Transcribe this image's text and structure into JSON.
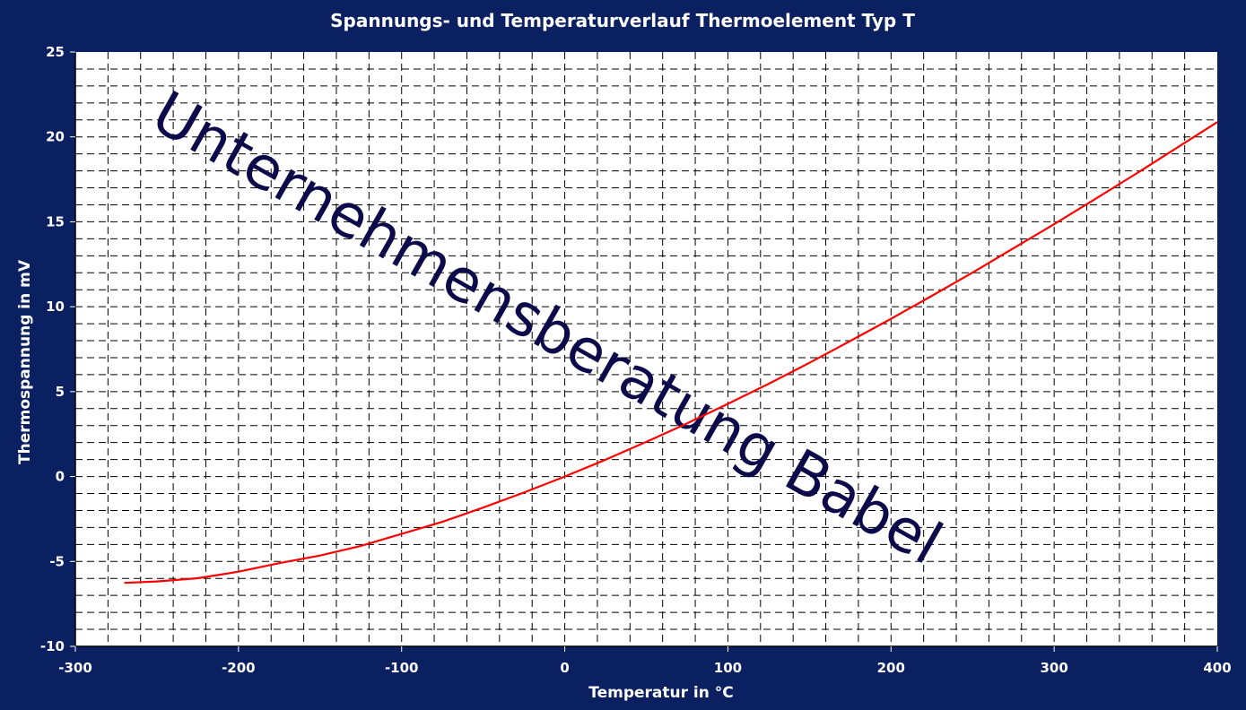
{
  "chart_data": {
    "type": "line",
    "title": "Spannungs- und Temperaturverlauf Thermoelement Typ T",
    "xlabel": "Temperatur in °C",
    "ylabel": "Thermospannung in mV",
    "xlim": [
      -300,
      400
    ],
    "ylim": [
      -10,
      25
    ],
    "x_ticks": [
      -300,
      -200,
      -100,
      0,
      100,
      200,
      300,
      400
    ],
    "y_ticks": [
      -10,
      -5,
      0,
      5,
      10,
      15,
      20,
      25
    ],
    "x_tick_labels": [
      "-300",
      "-200",
      "-100",
      "0",
      "100",
      "200",
      "300",
      "400"
    ],
    "y_tick_labels": [
      "-10",
      "-5",
      "0",
      "5",
      "10",
      "15",
      "20",
      "25"
    ],
    "grid": true,
    "watermark": "Unternehmensberatung Babel",
    "series": [
      {
        "color": "#ff0000",
        "x": [
          -270,
          -250,
          -225,
          -200,
          -175,
          -150,
          -125,
          -100,
          -75,
          -50,
          -25,
          0,
          25,
          50,
          75,
          100,
          125,
          150,
          175,
          200,
          225,
          250,
          275,
          300,
          325,
          350,
          375,
          400
        ],
        "y": [
          -6.26,
          -6.18,
          -5.99,
          -5.6,
          -5.1,
          -4.65,
          -4.08,
          -3.38,
          -2.67,
          -1.83,
          -0.94,
          0.0,
          0.99,
          2.04,
          3.13,
          4.28,
          5.46,
          6.7,
          7.98,
          9.29,
          10.64,
          12.01,
          13.44,
          14.86,
          16.33,
          17.82,
          19.34,
          20.87
        ]
      }
    ]
  },
  "colors": {
    "background": "#0a2060",
    "plot_area": "#ffffff",
    "grid": "#000000",
    "text": "#ffffff",
    "watermark": "#0c0a4a",
    "line": "#ff0000"
  }
}
